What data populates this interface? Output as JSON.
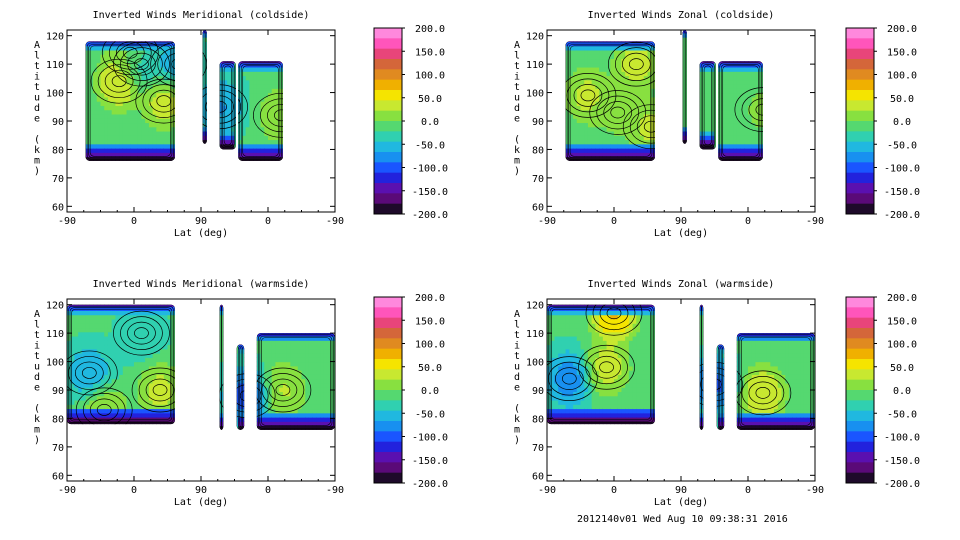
{
  "colorbar": {
    "ticks": [
      "200.0",
      "150.0",
      "100.0",
      "50.0",
      "0.0",
      "-50.0",
      "-100.0",
      "-150.0",
      "-200.0"
    ],
    "colors": [
      "#ff88dd",
      "#ff55bb",
      "#e8457a",
      "#d4663a",
      "#e08a20",
      "#f0b000",
      "#f5e400",
      "#c8e830",
      "#88e040",
      "#55d870",
      "#30d0b0",
      "#20b8e0",
      "#1890f0",
      "#1a55ff",
      "#2222dd",
      "#5a10b0",
      "#5a0a78",
      "#1e0a2a"
    ]
  },
  "chart_data": [
    {
      "type": "heatmap",
      "title": "Inverted Winds Meridional (coldside)",
      "xlabel": "Lat (deg)",
      "ylabel": "Altitude (km)",
      "x_ticks": [
        "-90",
        "0",
        "90",
        "0",
        "-90"
      ],
      "y_ticks": [
        "120",
        "110",
        "100",
        "90",
        "80",
        "70",
        "60"
      ],
      "ylim": [
        58,
        122
      ],
      "zlim": [
        -200,
        200
      ],
      "blobs": [
        {
          "x": -20,
          "y": 104,
          "value": 60
        },
        {
          "x": 40,
          "y": 97,
          "value": 45
        },
        {
          "x": -5,
          "y": 114,
          "value": 20
        },
        {
          "x": 10,
          "y": 110,
          "value": -55
        },
        {
          "x": 60,
          "y": 110,
          "value": -70
        },
        {
          "x": 115,
          "y": 95,
          "value": -80
        },
        {
          "x": 198,
          "y": 92,
          "value": 30
        }
      ]
    },
    {
      "type": "heatmap",
      "title": "Inverted Winds Zonal (coldside)",
      "xlabel": "Lat (deg)",
      "ylabel": "Altitude (km)",
      "x_ticks": [
        "-90",
        "0",
        "90",
        "0",
        "-90"
      ],
      "y_ticks": [
        "120",
        "110",
        "100",
        "90",
        "80",
        "70",
        "60"
      ],
      "ylim": [
        58,
        122
      ],
      "zlim": [
        -200,
        200
      ],
      "blobs": [
        {
          "x": -35,
          "y": 99,
          "value": 40
        },
        {
          "x": 30,
          "y": 110,
          "value": 45
        },
        {
          "x": 50,
          "y": 88,
          "value": 40
        },
        {
          "x": 5,
          "y": 93,
          "value": 15
        },
        {
          "x": 200,
          "y": 94,
          "value": 10
        }
      ]
    },
    {
      "type": "heatmap",
      "title": "Inverted Winds Meridional (warmside)",
      "xlabel": "Lat (deg)",
      "ylabel": "Altitude (km)",
      "x_ticks": [
        "-90",
        "0",
        "90",
        "0",
        "-90"
      ],
      "y_ticks": [
        "120",
        "110",
        "100",
        "90",
        "80",
        "70",
        "60"
      ],
      "ylim": [
        58,
        122
      ],
      "zlim": [
        -200,
        200
      ],
      "blobs": [
        {
          "x": 35,
          "y": 90,
          "value": 40
        },
        {
          "x": -40,
          "y": 83,
          "value": 35
        },
        {
          "x": -60,
          "y": 96,
          "value": -70
        },
        {
          "x": 10,
          "y": 110,
          "value": -40
        },
        {
          "x": 200,
          "y": 90,
          "value": 35
        },
        {
          "x": 152,
          "y": 88,
          "value": -120
        }
      ]
    },
    {
      "type": "heatmap",
      "title": "Inverted Winds Zonal (warmside)",
      "xlabel": "Lat (deg)",
      "ylabel": "Altitude (km)",
      "x_ticks": [
        "-90",
        "0",
        "90",
        "0",
        "-90"
      ],
      "y_ticks": [
        "120",
        "110",
        "100",
        "90",
        "80",
        "70",
        "60"
      ],
      "ylim": [
        58,
        122
      ],
      "zlim": [
        -200,
        200
      ],
      "blobs": [
        {
          "x": 0,
          "y": 117,
          "value": 90
        },
        {
          "x": -10,
          "y": 98,
          "value": 45
        },
        {
          "x": -60,
          "y": 94,
          "value": -90
        },
        {
          "x": 200,
          "y": 89,
          "value": 55
        },
        {
          "x": 135,
          "y": 92,
          "value": -110
        }
      ]
    }
  ],
  "footer": "2012140v01 Wed Aug 10 09:38:31 2016"
}
